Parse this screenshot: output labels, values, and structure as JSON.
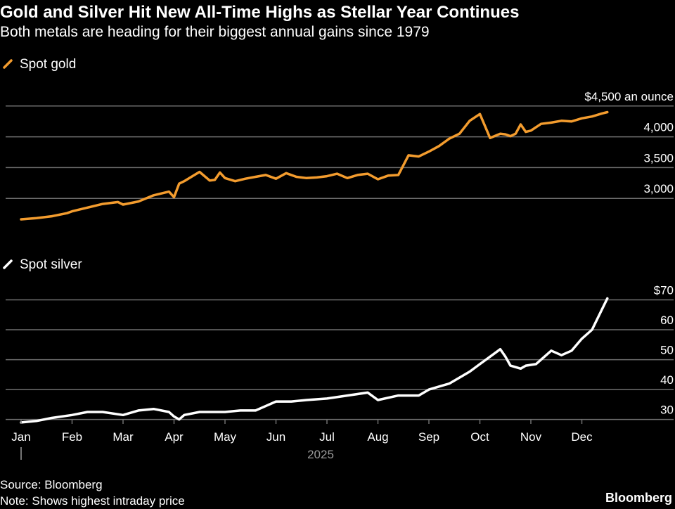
{
  "title": "Gold and Silver Hit New All-Time Highs as Stellar Year Continues",
  "subtitle": "Both metals are heading for their biggest annual gains since 1979",
  "source": "Source: Bloomberg",
  "note": "Note: Shows highest intraday price",
  "brand": "Bloomberg",
  "colors": {
    "background": "#000000",
    "gold": "#f39c2e",
    "silver": "#ffffff",
    "grid": "#6f6f6f",
    "axis_text": "#ffffff",
    "year_text": "#9a9a9a"
  },
  "chart_data": [
    {
      "type": "line",
      "name": "gold",
      "legend": "Spot gold",
      "ylim": [
        2500,
        4600
      ],
      "yticks": [
        {
          "value": 4500,
          "label": "$4,500 an ounce"
        },
        {
          "value": 4000,
          "label": "4,000"
        },
        {
          "value": 3500,
          "label": "3,500"
        },
        {
          "value": 3000,
          "label": "3,000"
        }
      ],
      "x": [
        0,
        0.3,
        0.6,
        0.9,
        1.0,
        1.3,
        1.6,
        1.9,
        2.0,
        2.3,
        2.6,
        2.9,
        3.0,
        3.1,
        3.2,
        3.5,
        3.7,
        3.8,
        3.9,
        4.0,
        4.2,
        4.4,
        4.6,
        4.8,
        5.0,
        5.2,
        5.4,
        5.6,
        5.8,
        6.0,
        6.2,
        6.4,
        6.6,
        6.8,
        7.0,
        7.2,
        7.4,
        7.6,
        7.8,
        8.0,
        8.2,
        8.4,
        8.6,
        8.8,
        9.0,
        9.2,
        9.4,
        9.5,
        9.6,
        9.7,
        9.8,
        9.9,
        10.0,
        10.2,
        10.4,
        10.6,
        10.8,
        11.0,
        11.2,
        11.4,
        11.5
      ],
      "y": [
        2660,
        2680,
        2710,
        2760,
        2790,
        2850,
        2910,
        2940,
        2900,
        2950,
        3050,
        3110,
        3020,
        3240,
        3280,
        3430,
        3290,
        3300,
        3420,
        3330,
        3280,
        3320,
        3350,
        3380,
        3320,
        3410,
        3350,
        3330,
        3340,
        3360,
        3400,
        3330,
        3380,
        3400,
        3310,
        3370,
        3380,
        3700,
        3680,
        3760,
        3850,
        3970,
        4050,
        4260,
        4370,
        3980,
        4050,
        4040,
        4010,
        4050,
        4200,
        4080,
        4100,
        4210,
        4230,
        4260,
        4250,
        4300,
        4330,
        4380,
        4400
      ],
      "x_months": [
        "Jan",
        "Feb",
        "Mar",
        "Apr",
        "May",
        "Jun",
        "Jul",
        "Aug",
        "Sep",
        "Oct",
        "Nov",
        "Dec"
      ]
    },
    {
      "type": "line",
      "name": "silver",
      "legend": "Spot silver",
      "ylim": [
        25,
        70
      ],
      "yticks": [
        {
          "value": 70,
          "label": "$70"
        },
        {
          "value": 60,
          "label": "60"
        },
        {
          "value": 50,
          "label": "50"
        },
        {
          "value": 40,
          "label": "40"
        },
        {
          "value": 30,
          "label": "30"
        }
      ],
      "x": [
        0,
        0.3,
        0.6,
        1.0,
        1.3,
        1.6,
        2.0,
        2.3,
        2.6,
        2.9,
        3.0,
        3.1,
        3.2,
        3.5,
        3.7,
        4.0,
        4.3,
        4.6,
        5.0,
        5.3,
        5.6,
        6.0,
        6.4,
        6.8,
        7.0,
        7.4,
        7.8,
        8.0,
        8.4,
        8.8,
        9.0,
        9.2,
        9.4,
        9.5,
        9.6,
        9.7,
        9.8,
        9.9,
        10.1,
        10.2,
        10.4,
        10.6,
        10.8,
        11.0,
        11.2,
        11.5
      ],
      "y": [
        29,
        29.5,
        30.5,
        31.5,
        32.5,
        32.5,
        31.5,
        33,
        33.5,
        32.5,
        31,
        30,
        31.5,
        32.5,
        32.5,
        32.5,
        33,
        33,
        36,
        36,
        36.5,
        37,
        38,
        39,
        36.5,
        38,
        38,
        40,
        42,
        46,
        48.5,
        51,
        53.5,
        51,
        48,
        47.5,
        47,
        48,
        48.5,
        50,
        53,
        51.5,
        53,
        57,
        60,
        70.5
      ],
      "x_months": [
        "Jan",
        "Feb",
        "Mar",
        "Apr",
        "May",
        "Jun",
        "Jul",
        "Aug",
        "Sep",
        "Oct",
        "Nov",
        "Dec"
      ]
    }
  ],
  "x_axis": {
    "months": [
      "Jan",
      "Feb",
      "Mar",
      "Apr",
      "May",
      "Jun",
      "Jul",
      "Aug",
      "Sep",
      "Oct",
      "Nov",
      "Dec"
    ],
    "year": "2025"
  }
}
